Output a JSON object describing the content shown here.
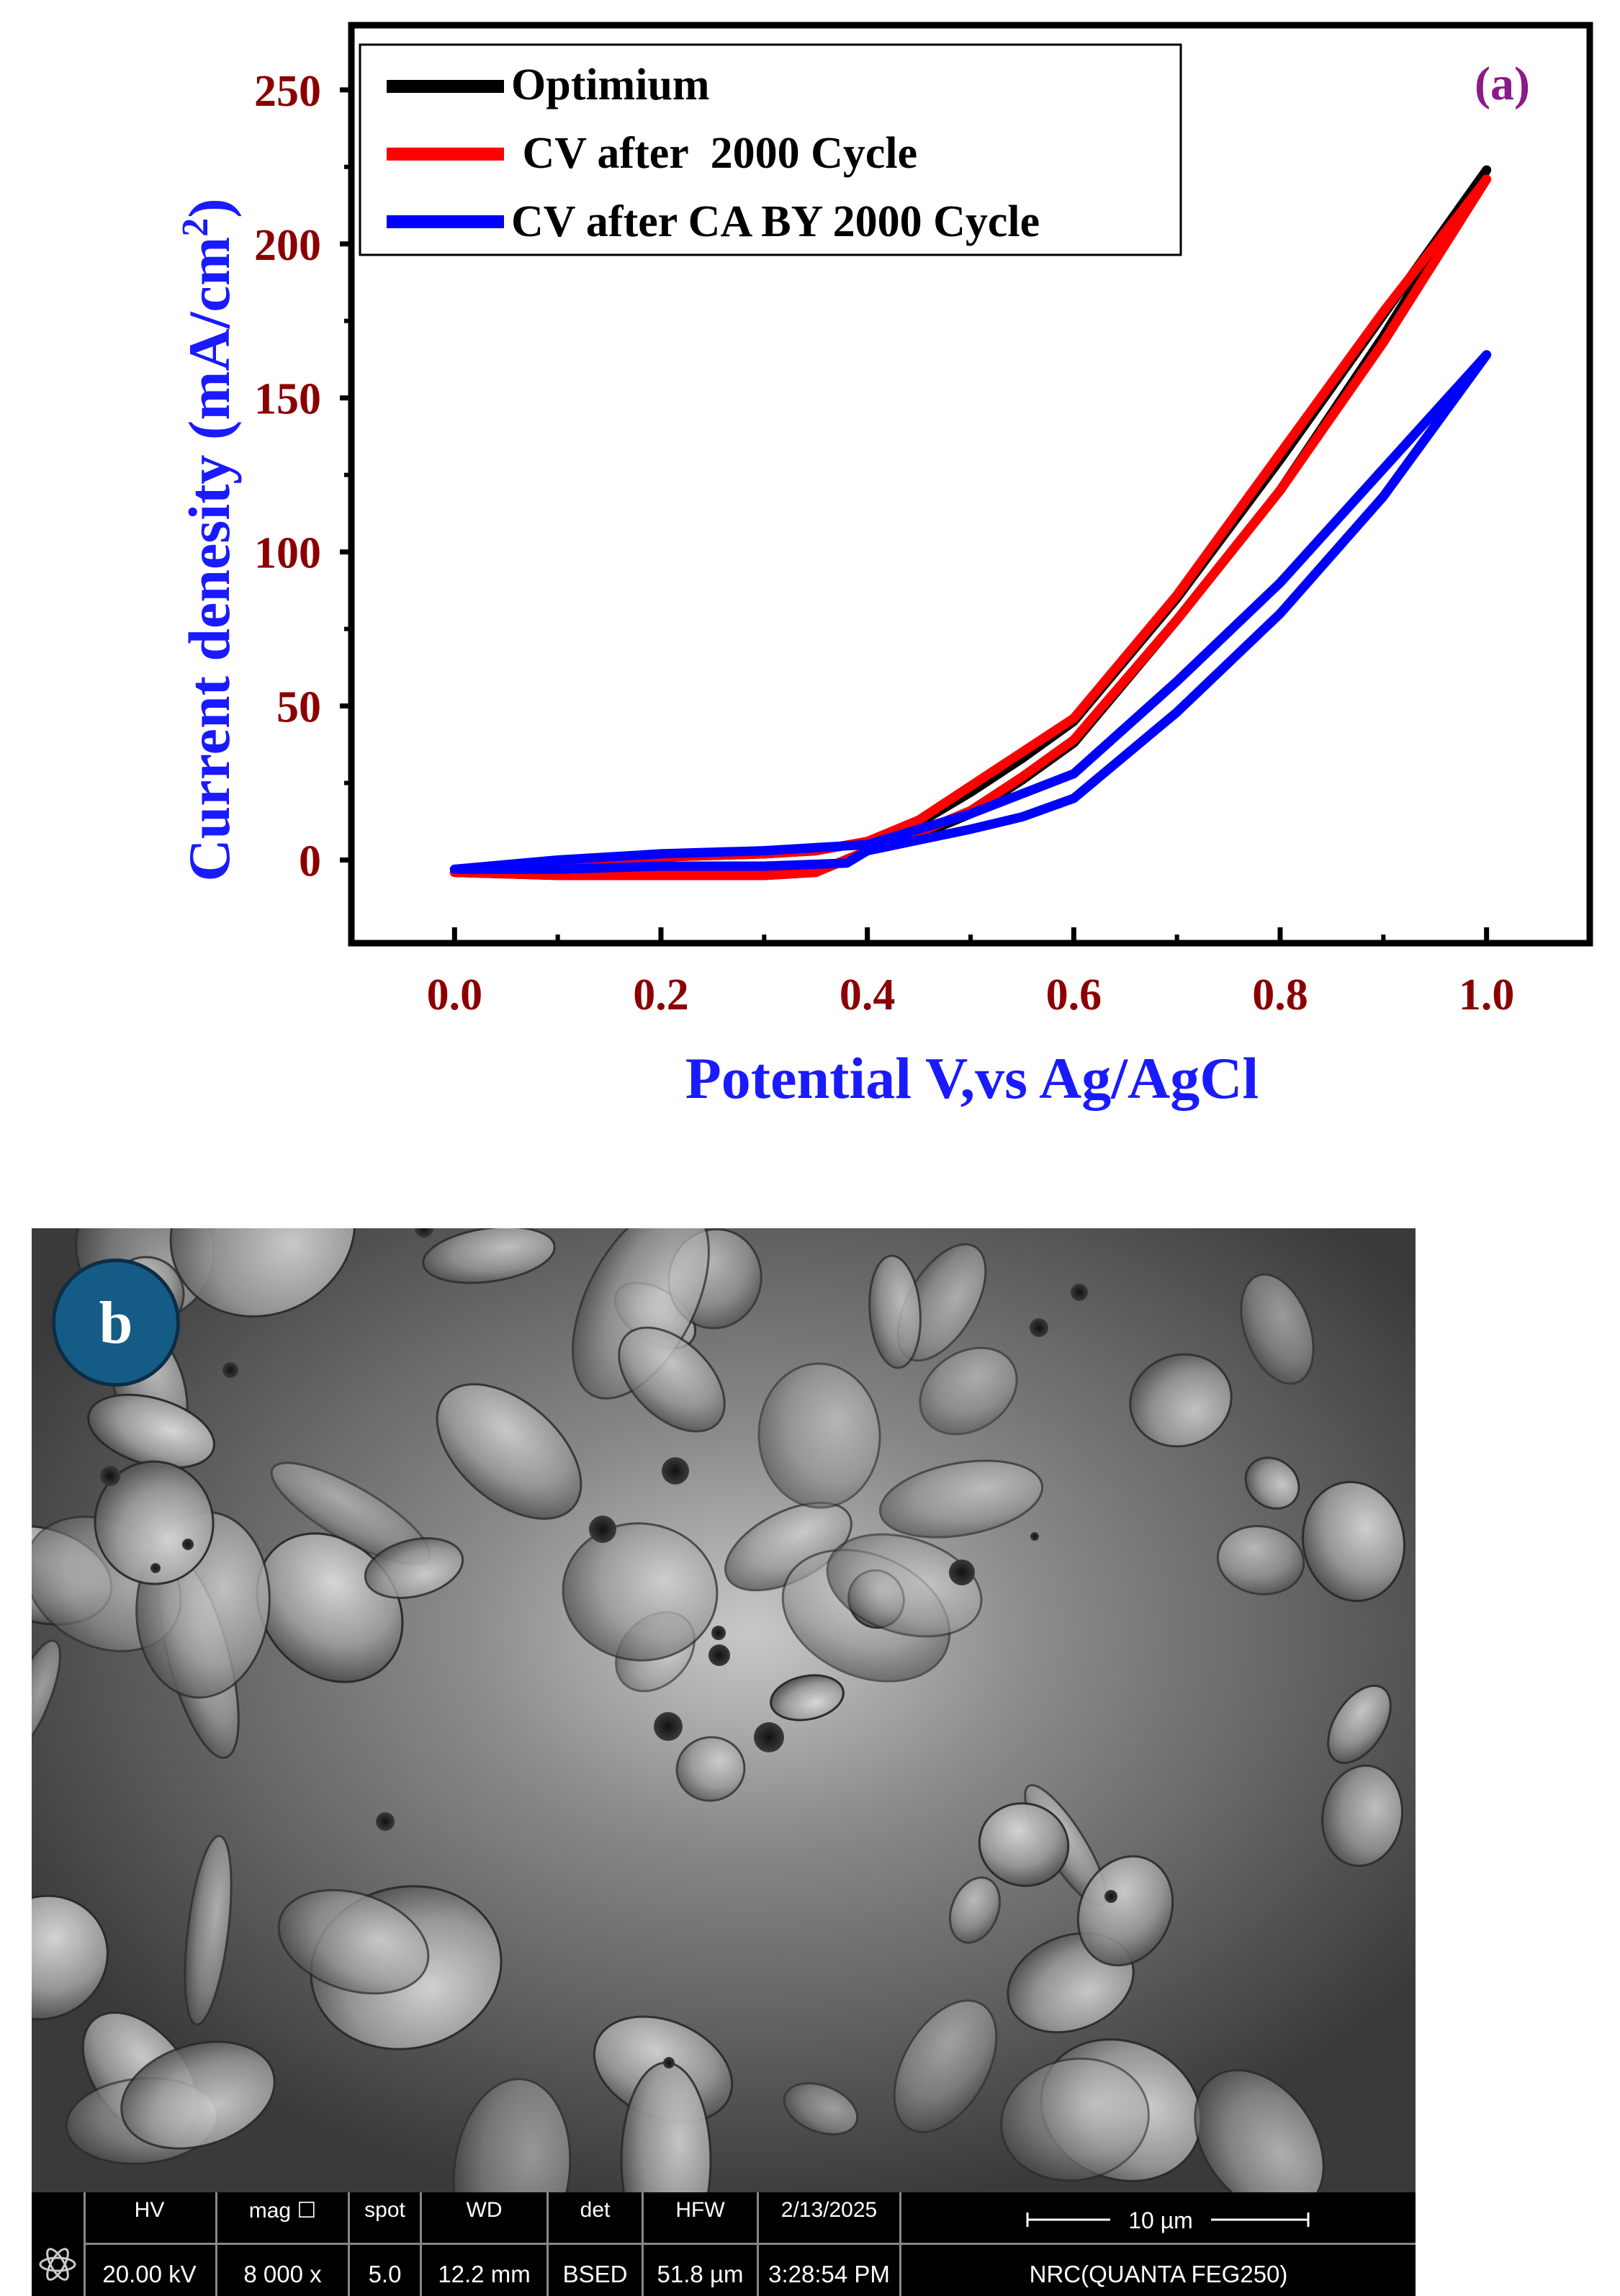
{
  "chart_data": {
    "type": "line",
    "panel_label": "(a)",
    "xlabel": "Potential V,vs Ag/AgCl",
    "ylabel": "Current denesity (mA/cm²)",
    "xlim": [
      -0.1,
      1.1
    ],
    "ylim": [
      -27,
      271
    ],
    "xticks": [
      "0.0",
      "0.2",
      "0.4",
      "0.6",
      "0.8",
      "1.0"
    ],
    "yticks": [
      "0",
      "50",
      "100",
      "150",
      "200",
      "250"
    ],
    "legend_position": "top-left",
    "colors": {
      "ticklabel": "#8b0000",
      "xlabel": "#1a1aff",
      "ylabel": "#1a1aff",
      "panel_label": "#8b1a8b"
    },
    "series": [
      {
        "name": "Optimium",
        "color": "#000000",
        "forward": [
          [
            0.0,
            -4
          ],
          [
            0.1,
            -2
          ],
          [
            0.2,
            1
          ],
          [
            0.3,
            2
          ],
          [
            0.35,
            3
          ],
          [
            0.4,
            6
          ],
          [
            0.45,
            12
          ],
          [
            0.5,
            22
          ],
          [
            0.55,
            33
          ],
          [
            0.6,
            45
          ],
          [
            0.7,
            85
          ],
          [
            0.8,
            130
          ],
          [
            0.9,
            177
          ],
          [
            1.0,
            224
          ]
        ],
        "reverse": [
          [
            1.0,
            224
          ],
          [
            0.9,
            170
          ],
          [
            0.8,
            120
          ],
          [
            0.7,
            78
          ],
          [
            0.6,
            38
          ],
          [
            0.55,
            26
          ],
          [
            0.5,
            15
          ],
          [
            0.45,
            8
          ],
          [
            0.4,
            3
          ],
          [
            0.35,
            -4
          ],
          [
            0.3,
            -5
          ],
          [
            0.2,
            -5
          ],
          [
            0.1,
            -5
          ],
          [
            0.0,
            -4
          ]
        ]
      },
      {
        "name": " CV after  2000 Cycle",
        "color": "#ff0000",
        "forward": [
          [
            0.0,
            -4
          ],
          [
            0.1,
            -2
          ],
          [
            0.2,
            1
          ],
          [
            0.3,
            2
          ],
          [
            0.35,
            3
          ],
          [
            0.4,
            6
          ],
          [
            0.45,
            13
          ],
          [
            0.5,
            24
          ],
          [
            0.55,
            35
          ],
          [
            0.6,
            46
          ],
          [
            0.7,
            86
          ],
          [
            0.8,
            132
          ],
          [
            0.9,
            178
          ],
          [
            1.0,
            221
          ]
        ],
        "reverse": [
          [
            1.0,
            221
          ],
          [
            0.9,
            168
          ],
          [
            0.8,
            120
          ],
          [
            0.7,
            78
          ],
          [
            0.6,
            39
          ],
          [
            0.55,
            27
          ],
          [
            0.5,
            16
          ],
          [
            0.45,
            9
          ],
          [
            0.4,
            3
          ],
          [
            0.35,
            -4
          ],
          [
            0.3,
            -5
          ],
          [
            0.2,
            -5
          ],
          [
            0.1,
            -5
          ],
          [
            0.0,
            -4
          ]
        ]
      },
      {
        "name": "CV after CA BY 2000 Cycle",
        "color": "#0000ff",
        "forward": [
          [
            0.0,
            -3
          ],
          [
            0.1,
            0
          ],
          [
            0.2,
            2
          ],
          [
            0.3,
            3
          ],
          [
            0.4,
            5
          ],
          [
            0.5,
            15
          ],
          [
            0.6,
            28
          ],
          [
            0.7,
            58
          ],
          [
            0.8,
            90
          ],
          [
            0.9,
            127
          ],
          [
            1.0,
            164
          ]
        ],
        "reverse": [
          [
            1.0,
            164
          ],
          [
            0.9,
            118
          ],
          [
            0.8,
            80
          ],
          [
            0.7,
            48
          ],
          [
            0.6,
            20
          ],
          [
            0.55,
            14
          ],
          [
            0.5,
            10
          ],
          [
            0.4,
            3
          ],
          [
            0.38,
            -1
          ],
          [
            0.3,
            -2
          ],
          [
            0.2,
            -2
          ],
          [
            0.1,
            -3
          ],
          [
            0.0,
            -3
          ]
        ]
      }
    ]
  },
  "sem": {
    "panel_label": "b",
    "databar": {
      "cells": [
        {
          "h": "HV",
          "v": "20.00 kV"
        },
        {
          "h": "mag ☐",
          "v": "8 000 x"
        },
        {
          "h": "spot",
          "v": "5.0"
        },
        {
          "h": "WD",
          "v": "12.2 mm"
        },
        {
          "h": "det",
          "v": "BSED"
        },
        {
          "h": "HFW",
          "v": "51.8 µm"
        },
        {
          "h": "2/13/2025",
          "v": "3:28:54 PM"
        }
      ],
      "scale_label": "10 µm",
      "instrument": "NRC(QUANTA FEG250)"
    }
  }
}
